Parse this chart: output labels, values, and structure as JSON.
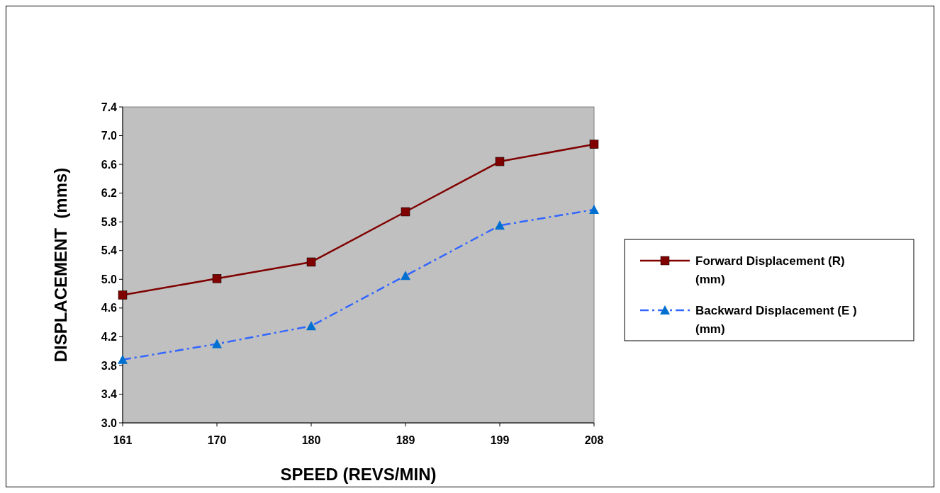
{
  "chart_data": {
    "type": "line",
    "xlabel": "SPEED (REVS/MIN)",
    "ylabel": "DISPLACEMENT  (mms)",
    "categories": [
      "161",
      "170",
      "180",
      "189",
      "199",
      "208"
    ],
    "series": [
      {
        "name": "Forward Displacement (R) (mm)",
        "color": "#800000",
        "values": [
          4.78,
          5.01,
          5.24,
          5.94,
          6.64,
          6.88
        ],
        "marker": "square",
        "line_style": "solid"
      },
      {
        "name": "Backward Displacement (E ) (mm)",
        "color": "#3366ff",
        "values": [
          3.88,
          4.1,
          4.35,
          5.05,
          5.75,
          5.97
        ],
        "marker": "triangle",
        "line_style": "dashed"
      }
    ],
    "ylim": [
      3.0,
      7.4
    ],
    "yticks": [
      {
        "value": 3.0,
        "label": "3.0"
      },
      3.4,
      3.8,
      4.2,
      4.6,
      {
        "value": 5.0,
        "label": "5.0"
      },
      5.4,
      5.8,
      6.2,
      6.6,
      {
        "value": 7.0,
        "label": "7.0"
      },
      7.4
    ],
    "grid": false,
    "legend": "right"
  }
}
